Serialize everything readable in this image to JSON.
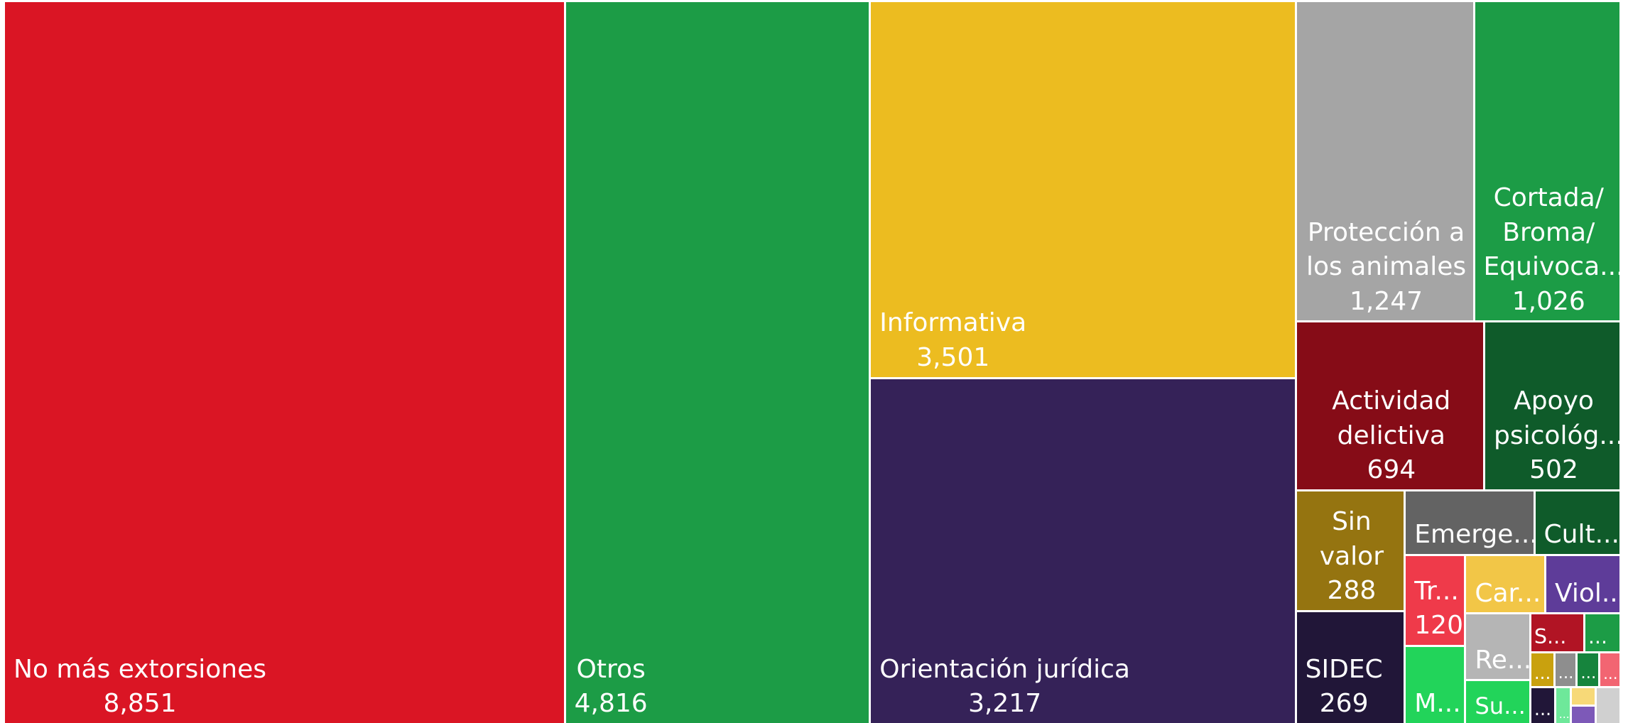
{
  "chart_data": {
    "type": "treemap",
    "categories": [
      "No más extorsiones",
      "Otros",
      "Informativa",
      "Orientación jurídica",
      "Protección a los animales",
      "Cortada/ Broma/ Equivoca...",
      "Actividad delictiva",
      "Apoyo psicológ...",
      "Sin valor",
      "SIDEC",
      "Emerge...",
      "Cult...",
      "Tr...",
      "M...",
      "Car...",
      "Viol...",
      "Re...",
      "Su...",
      "S...",
      "...",
      "...",
      "...",
      "...",
      "...",
      "...",
      "...",
      null,
      null,
      null
    ],
    "values": [
      8851,
      4816,
      3501,
      3217,
      1247,
      1026,
      694,
      502,
      288,
      269,
      183,
      122,
      120,
      103,
      102,
      96,
      95,
      62,
      46,
      31,
      18,
      17,
      17,
      16,
      20,
      13,
      10,
      10,
      20
    ],
    "value_labels": [
      "8,851",
      "4,816",
      "3,501",
      "3,217",
      "1,247",
      "1,026",
      "694",
      "502",
      "288",
      "269",
      null,
      null,
      "120",
      null,
      null,
      null,
      null,
      null,
      null,
      null,
      null,
      null,
      null,
      null,
      null,
      null,
      null,
      null,
      null
    ],
    "colors": [
      "#da1524",
      "#1c9c46",
      "#ecbc20",
      "#352258",
      "#a5a5a5",
      "#1c9c46",
      "#860c17",
      "#0f5b2a",
      "#957410",
      "#211638",
      "#636363",
      "#0f5b2a",
      "#ef3a4a",
      "#22d45a",
      "#f2c647",
      "#5e3c99",
      "#b5b5b5",
      "#22d45a",
      "#b11424",
      "#1c9c46",
      "#c9a10e",
      "#8e8e8e",
      "#16843d",
      "#f26572",
      "#211638",
      "#6ee89a",
      "#f7d978",
      "#7d59b8",
      "#d0d0d0"
    ]
  }
}
